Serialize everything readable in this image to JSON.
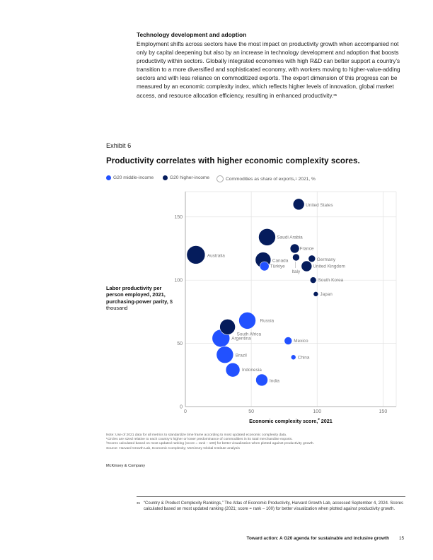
{
  "section": {
    "heading": "Technology development and adoption",
    "paragraph": "Employment shifts across sectors have the most impact on productivity growth when accompanied not only by capital deepening but also by an increase in technology development and adoption that boosts productivity within sectors. Globally integrated economies with high R&D can better support a country’s transition to a more diversified and sophisticated economy, with workers moving to higher-value-adding sectors and with less reliance on commoditized exports. The export dimension of this progress can be measured by an economic complexity index, which reflects higher levels of innovation, global market access, and resource allocation efficiency, resulting in enhanced productivity.",
    "footnote_marker": "35"
  },
  "exhibit": {
    "label": "Exhibit 6",
    "title": "Productivity correlates with higher economic complexity scores.",
    "legend": {
      "middle_income": "G20 middle-income",
      "higher_income": "G20 higher-income",
      "size_label": "Commodities as share of exports,",
      "size_marker": "1",
      "size_suffix": " 2021, %"
    },
    "ylabel": "Labor productivity per person employed, 2021, purchasing-power parity,",
    "ylabel_unit": "$ thousand",
    "xlabel": "Economic complexity score,",
    "xlabel_marker": "2",
    "xlabel_suffix": " 2021"
  },
  "colors": {
    "middle_income": "#2251ff",
    "higher_income": "#051c5c",
    "grid": "#e2e2e2",
    "axis": "#999999",
    "label": "#777777"
  },
  "chart_data": {
    "type": "scatter",
    "xlabel": "Economic complexity score, 2021",
    "ylabel": "Labor productivity per person employed, 2021, purchasing-power parity, $ thousand",
    "xlim": [
      0,
      160
    ],
    "ylim": [
      0,
      170
    ],
    "xticks": [
      0,
      50,
      100,
      150
    ],
    "yticks": [
      0,
      50,
      100,
      150
    ],
    "grid": true,
    "size_variable": "Commodities as share of exports, 2021, %",
    "points": [
      {
        "name": "United States",
        "x": 86,
        "y": 160,
        "group": "higher",
        "size": 8
      },
      {
        "name": "Saudi Arabia",
        "x": 62,
        "y": 134,
        "group": "higher",
        "size": 12
      },
      {
        "name": "France",
        "x": 83,
        "y": 125,
        "group": "higher",
        "size": 6.5
      },
      {
        "name": "Australia",
        "x": 8,
        "y": 120,
        "group": "higher",
        "size": 13
      },
      {
        "name": "Germany",
        "x": 96,
        "y": 117,
        "group": "higher",
        "size": 5
      },
      {
        "name": "Italy",
        "x": 84,
        "y": 118,
        "group": "higher",
        "size": 5
      },
      {
        "name": "Canada",
        "x": 59,
        "y": 116,
        "group": "higher",
        "size": 11
      },
      {
        "name": "Türkiye",
        "x": 60,
        "y": 111,
        "group": "middle",
        "size": 6.5
      },
      {
        "name": "United Kingdom",
        "x": 92,
        "y": 111,
        "group": "higher",
        "size": 7.5
      },
      {
        "name": "South Korea",
        "x": 97,
        "y": 100,
        "group": "higher",
        "size": 4.5
      },
      {
        "name": "Japan",
        "x": 99,
        "y": 89,
        "group": "higher",
        "size": 3.5
      },
      {
        "name": "Russia",
        "x": 47,
        "y": 68,
        "group": "middle",
        "size": 12
      },
      {
        "name": "South Africa",
        "x": 32,
        "y": 63,
        "group": "higher",
        "size": 11
      },
      {
        "name": "Argentina",
        "x": 27,
        "y": 54,
        "group": "middle",
        "size": 12.5
      },
      {
        "name": "Mexico",
        "x": 78,
        "y": 52,
        "group": "middle",
        "size": 5.5
      },
      {
        "name": "Brazil",
        "x": 30,
        "y": 41,
        "group": "middle",
        "size": 12
      },
      {
        "name": "China",
        "x": 82,
        "y": 39,
        "group": "middle",
        "size": 3.5
      },
      {
        "name": "Indonesia",
        "x": 36,
        "y": 29,
        "group": "middle",
        "size": 10
      },
      {
        "name": "India",
        "x": 58,
        "y": 21,
        "group": "middle",
        "size": 8.5
      }
    ]
  },
  "notes": [
    "Note: Use of 2021 data for all metrics to standardize time frame according to most updated economic complexity data.",
    "¹Circles are sized relative to each country’s higher or lower predominance of commodities in its total merchandise exports.",
    "²Scores calculated based on most updated ranking (score = rank – 100) for better visualization when plotted against productivity growth.",
    "Source: Harvard Growth Lab, Economic Complexity; McKinsey Global Institute analysis"
  ],
  "brand": "McKinsey & Company",
  "footnote": {
    "number": "35",
    "text": "“Country & Product Complexity Rankings,” The Atlas of Economic Productivity, Harvard Growth Lab, accessed September 4, 2024. Scores calculated based on most updated ranking (2021; score = rank – 100) for better visualization when plotted against productivity growth."
  },
  "running_title": "Toward action: A G20 agenda for sustainable and inclusive growth",
  "page_number": "15"
}
